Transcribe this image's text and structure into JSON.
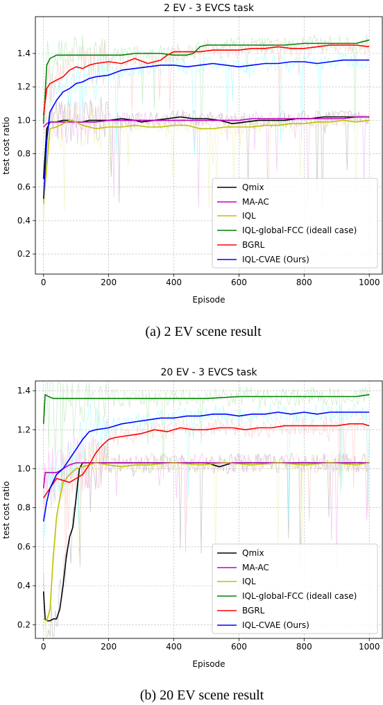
{
  "panels": [
    {
      "caption": "(a) 2 EV scene result"
    },
    {
      "caption": "(b) 20 EV scene result"
    }
  ],
  "chart_data": [
    {
      "type": "line",
      "title": "2 EV - 3 EVCS task",
      "xlabel": "Episode",
      "ylabel": "test cost ratio",
      "xlim": [
        -25,
        1040
      ],
      "ylim": [
        0.08,
        1.62
      ],
      "xticks": [
        0,
        200,
        400,
        600,
        800,
        1000
      ],
      "yticks": [
        0.2,
        0.4,
        0.6,
        0.8,
        1.0,
        1.2,
        1.4
      ],
      "ytick_labels": [
        "0.2",
        "0.4",
        "0.6",
        "0.8",
        "1.0",
        "1.2",
        "1.4"
      ],
      "grid": true,
      "legend_position": "lower-right",
      "series": [
        {
          "name": "Qmix",
          "color": "#000000",
          "x": [
            0,
            10,
            20,
            40,
            60,
            80,
            100,
            120,
            140,
            160,
            180,
            200,
            240,
            280,
            300,
            340,
            380,
            420,
            460,
            500,
            540,
            580,
            620,
            660,
            700,
            740,
            780,
            820,
            860,
            900,
            940,
            1000
          ],
          "y": [
            0.65,
            0.95,
            0.99,
            0.99,
            1.0,
            1.0,
            0.99,
            0.99,
            1.0,
            1.0,
            1.0,
            1.0,
            1.01,
            1.0,
            0.99,
            1.0,
            1.01,
            1.02,
            1.01,
            1.01,
            1.0,
            0.98,
            0.99,
            1.0,
            1.0,
            1.0,
            1.01,
            1.01,
            1.02,
            1.02,
            1.02,
            1.02
          ]
        },
        {
          "name": "MA-AC",
          "color": "#bf00bf",
          "x": [
            0,
            10,
            20,
            40,
            80,
            120,
            160,
            200,
            240,
            280,
            320,
            360,
            400,
            440,
            480,
            520,
            560,
            600,
            640,
            680,
            720,
            760,
            800,
            840,
            880,
            920,
            960,
            1000
          ],
          "y": [
            0.96,
            0.98,
            0.99,
            0.99,
            0.99,
            0.99,
            0.99,
            1.0,
            1.0,
            1.0,
            1.0,
            1.0,
            1.0,
            1.0,
            1.0,
            1.0,
            1.0,
            1.0,
            1.01,
            1.01,
            1.01,
            1.01,
            1.01,
            1.01,
            1.01,
            1.01,
            1.02,
            1.02
          ]
        },
        {
          "name": "IQL",
          "color": "#bfbf00",
          "x": [
            0,
            20,
            40,
            60,
            80,
            100,
            120,
            160,
            200,
            240,
            280,
            320,
            360,
            400,
            440,
            480,
            520,
            560,
            600,
            640,
            680,
            720,
            760,
            800,
            840,
            880,
            920,
            960,
            1000
          ],
          "y": [
            0.5,
            0.95,
            0.96,
            0.98,
            1.0,
            0.99,
            0.97,
            0.95,
            0.96,
            0.96,
            0.97,
            0.96,
            0.96,
            0.97,
            0.97,
            0.95,
            0.95,
            0.96,
            0.96,
            0.96,
            0.97,
            0.97,
            0.98,
            0.98,
            0.99,
            0.99,
            1.0,
            0.99,
            1.0
          ]
        },
        {
          "name": "IQL-global-FCC (ideall case)",
          "color": "#008000",
          "x": [
            0,
            10,
            20,
            40,
            60,
            80,
            120,
            160,
            200,
            240,
            280,
            320,
            360,
            400,
            440,
            460,
            480,
            500,
            560,
            620,
            680,
            740,
            800,
            860,
            920,
            960,
            1000
          ],
          "y": [
            0.98,
            1.33,
            1.37,
            1.39,
            1.39,
            1.39,
            1.39,
            1.39,
            1.39,
            1.39,
            1.4,
            1.4,
            1.4,
            1.39,
            1.39,
            1.4,
            1.44,
            1.45,
            1.45,
            1.45,
            1.45,
            1.45,
            1.46,
            1.46,
            1.46,
            1.46,
            1.48
          ]
        },
        {
          "name": "BGRL",
          "color": "#ff0000",
          "x": [
            0,
            10,
            20,
            40,
            60,
            80,
            100,
            120,
            140,
            160,
            200,
            240,
            280,
            320,
            360,
            380,
            400,
            440,
            480,
            520,
            560,
            600,
            640,
            680,
            720,
            760,
            800,
            840,
            880,
            920,
            960,
            1000
          ],
          "y": [
            1.03,
            1.19,
            1.22,
            1.24,
            1.26,
            1.3,
            1.32,
            1.31,
            1.33,
            1.34,
            1.35,
            1.34,
            1.37,
            1.34,
            1.36,
            1.39,
            1.41,
            1.41,
            1.41,
            1.42,
            1.42,
            1.42,
            1.43,
            1.43,
            1.44,
            1.43,
            1.43,
            1.44,
            1.45,
            1.45,
            1.45,
            1.44
          ]
        },
        {
          "name": "IQL-CVAE (Ours)",
          "color": "#0000ff",
          "x": [
            0,
            10,
            20,
            40,
            60,
            80,
            100,
            120,
            140,
            160,
            200,
            240,
            280,
            320,
            360,
            400,
            440,
            480,
            520,
            560,
            600,
            640,
            680,
            720,
            760,
            800,
            840,
            880,
            920,
            960,
            1000
          ],
          "y": [
            0.53,
            0.88,
            1.05,
            1.12,
            1.17,
            1.19,
            1.22,
            1.23,
            1.25,
            1.26,
            1.27,
            1.3,
            1.31,
            1.32,
            1.33,
            1.33,
            1.32,
            1.33,
            1.34,
            1.33,
            1.32,
            1.33,
            1.34,
            1.34,
            1.35,
            1.35,
            1.34,
            1.35,
            1.36,
            1.36,
            1.36
          ]
        }
      ]
    },
    {
      "type": "line",
      "title": "20 EV - 3 EVCS task",
      "xlabel": "Episode",
      "ylabel": "test cost ratio",
      "xlim": [
        -25,
        1040
      ],
      "ylim": [
        0.13,
        1.45
      ],
      "xticks": [
        0,
        200,
        400,
        600,
        800,
        1000
      ],
      "yticks": [
        0.2,
        0.4,
        0.6,
        0.8,
        1.0,
        1.2,
        1.4
      ],
      "ytick_labels": [
        "0.2",
        "0.4",
        "0.6",
        "0.8",
        "1.0",
        "1.2",
        "1.4"
      ],
      "grid": true,
      "legend_position": "lower-right",
      "series": [
        {
          "name": "Qmix",
          "color": "#000000",
          "x": [
            0,
            5,
            10,
            20,
            30,
            40,
            50,
            60,
            70,
            80,
            90,
            100,
            110,
            120,
            140,
            160,
            200,
            300,
            400,
            500,
            540,
            560,
            580,
            600,
            700,
            800,
            900,
            1000
          ],
          "y": [
            0.37,
            0.23,
            0.22,
            0.22,
            0.23,
            0.23,
            0.28,
            0.4,
            0.55,
            0.65,
            0.7,
            0.85,
            1.0,
            1.03,
            1.03,
            1.03,
            1.03,
            1.03,
            1.03,
            1.03,
            1.01,
            1.02,
            1.03,
            1.03,
            1.03,
            1.03,
            1.03,
            1.03
          ]
        },
        {
          "name": "MA-AC",
          "color": "#bf00bf",
          "x": [
            0,
            5,
            10,
            20,
            40,
            60,
            80,
            100,
            200,
            300,
            400,
            500,
            600,
            700,
            800,
            900,
            1000
          ],
          "y": [
            0.9,
            0.98,
            0.98,
            0.98,
            0.98,
            1.0,
            1.02,
            1.03,
            1.03,
            1.03,
            1.03,
            1.03,
            1.03,
            1.03,
            1.03,
            1.03,
            1.03
          ]
        },
        {
          "name": "IQL",
          "color": "#bfbf00",
          "x": [
            0,
            10,
            20,
            30,
            40,
            50,
            60,
            80,
            100,
            120,
            140,
            160,
            200,
            240,
            280,
            320,
            400,
            480,
            560,
            640,
            720,
            800,
            880,
            960,
            1000
          ],
          "y": [
            0.23,
            0.22,
            0.28,
            0.55,
            0.75,
            0.85,
            0.93,
            0.97,
            1.0,
            1.01,
            1.02,
            1.03,
            1.02,
            1.01,
            1.02,
            1.02,
            1.03,
            1.02,
            1.03,
            1.02,
            1.03,
            1.02,
            1.03,
            1.02,
            1.03
          ]
        },
        {
          "name": "IQL-global-FCC (ideall case)",
          "color": "#008000",
          "x": [
            0,
            5,
            15,
            30,
            60,
            100,
            200,
            300,
            400,
            500,
            600,
            700,
            800,
            900,
            960,
            1000
          ],
          "y": [
            1.23,
            1.38,
            1.37,
            1.36,
            1.36,
            1.36,
            1.36,
            1.36,
            1.36,
            1.36,
            1.37,
            1.37,
            1.37,
            1.37,
            1.37,
            1.38
          ]
        },
        {
          "name": "BGRL",
          "color": "#ff0000",
          "x": [
            0,
            20,
            40,
            60,
            80,
            100,
            120,
            140,
            160,
            180,
            200,
            220,
            260,
            300,
            340,
            380,
            420,
            460,
            500,
            540,
            580,
            620,
            660,
            700,
            740,
            780,
            820,
            860,
            900,
            940,
            980,
            1000
          ],
          "y": [
            0.85,
            0.9,
            0.95,
            0.94,
            0.93,
            0.95,
            0.97,
            1.02,
            1.08,
            1.12,
            1.15,
            1.16,
            1.17,
            1.18,
            1.2,
            1.19,
            1.21,
            1.2,
            1.2,
            1.21,
            1.21,
            1.2,
            1.21,
            1.21,
            1.22,
            1.22,
            1.22,
            1.22,
            1.22,
            1.23,
            1.23,
            1.22
          ]
        },
        {
          "name": "IQL-CVAE (Ours)",
          "color": "#0000ff",
          "x": [
            0,
            10,
            20,
            40,
            60,
            80,
            100,
            120,
            140,
            160,
            200,
            240,
            280,
            320,
            360,
            400,
            440,
            480,
            520,
            560,
            600,
            640,
            680,
            720,
            760,
            800,
            840,
            880,
            920,
            960,
            1000
          ],
          "y": [
            0.73,
            0.83,
            0.9,
            0.97,
            1.0,
            1.05,
            1.1,
            1.15,
            1.19,
            1.2,
            1.21,
            1.23,
            1.24,
            1.25,
            1.26,
            1.26,
            1.27,
            1.27,
            1.28,
            1.28,
            1.27,
            1.28,
            1.28,
            1.29,
            1.28,
            1.29,
            1.28,
            1.29,
            1.29,
            1.29,
            1.29
          ]
        }
      ]
    }
  ]
}
